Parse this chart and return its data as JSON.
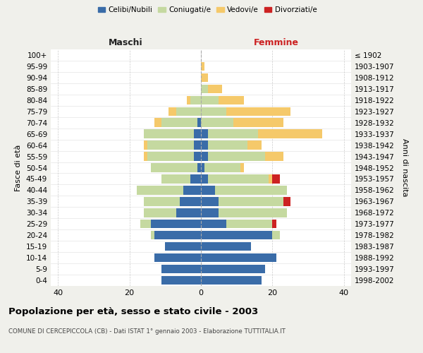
{
  "age_groups": [
    "0-4",
    "5-9",
    "10-14",
    "15-19",
    "20-24",
    "25-29",
    "30-34",
    "35-39",
    "40-44",
    "45-49",
    "50-54",
    "55-59",
    "60-64",
    "65-69",
    "70-74",
    "75-79",
    "80-84",
    "85-89",
    "90-94",
    "95-99",
    "100+"
  ],
  "birth_years": [
    "1998-2002",
    "1993-1997",
    "1988-1992",
    "1983-1987",
    "1978-1982",
    "1973-1977",
    "1968-1972",
    "1963-1967",
    "1958-1962",
    "1953-1957",
    "1948-1952",
    "1943-1947",
    "1938-1942",
    "1933-1937",
    "1928-1932",
    "1923-1927",
    "1918-1922",
    "1913-1917",
    "1908-1912",
    "1903-1907",
    "≤ 1902"
  ],
  "male": {
    "celibi": [
      11,
      11,
      13,
      10,
      13,
      14,
      7,
      6,
      5,
      3,
      1,
      2,
      2,
      2,
      1,
      0,
      0,
      0,
      0,
      0,
      0
    ],
    "coniugati": [
      0,
      0,
      0,
      0,
      1,
      3,
      9,
      10,
      13,
      8,
      13,
      13,
      13,
      14,
      10,
      7,
      3,
      0,
      0,
      0,
      0
    ],
    "vedovi": [
      0,
      0,
      0,
      0,
      0,
      0,
      0,
      0,
      0,
      0,
      0,
      1,
      1,
      0,
      2,
      2,
      1,
      0,
      0,
      0,
      0
    ],
    "divorziati": [
      0,
      0,
      0,
      0,
      0,
      0,
      0,
      0,
      0,
      0,
      0,
      0,
      0,
      0,
      0,
      0,
      0,
      0,
      0,
      0,
      0
    ]
  },
  "female": {
    "nubili": [
      17,
      18,
      21,
      14,
      20,
      7,
      5,
      5,
      4,
      2,
      1,
      2,
      2,
      2,
      0,
      0,
      0,
      0,
      0,
      0,
      0
    ],
    "coniugate": [
      0,
      0,
      0,
      0,
      2,
      13,
      19,
      18,
      20,
      17,
      10,
      16,
      11,
      14,
      9,
      7,
      5,
      2,
      0,
      0,
      0
    ],
    "vedove": [
      0,
      0,
      0,
      0,
      0,
      0,
      0,
      0,
      0,
      1,
      1,
      5,
      4,
      18,
      14,
      18,
      7,
      4,
      2,
      1,
      0
    ],
    "divorziate": [
      0,
      0,
      0,
      0,
      0,
      1,
      0,
      2,
      0,
      2,
      0,
      0,
      0,
      0,
      0,
      0,
      0,
      0,
      0,
      0,
      0
    ]
  },
  "colors": {
    "celibi_nubili": "#3a6ca8",
    "coniugati": "#c5d9a0",
    "vedovi": "#f5c96a",
    "divorziati": "#cc2222"
  },
  "xlim": 42,
  "title": "Popolazione per età, sesso e stato civile - 2003",
  "subtitle": "COMUNE DI CERCEPICCOLA (CB) - Dati ISTAT 1° gennaio 2003 - Elaborazione TUTTITALIA.IT",
  "ylabel_left": "Fasce di età",
  "ylabel_right": "Anni di nascita",
  "xlabel_maschi": "Maschi",
  "xlabel_femmine": "Femmine",
  "legend_labels": [
    "Celibi/Nubili",
    "Coniugati/e",
    "Vedovi/e",
    "Divorziati/e"
  ],
  "bg_color": "#f0f0eb",
  "plot_bg": "#ffffff"
}
